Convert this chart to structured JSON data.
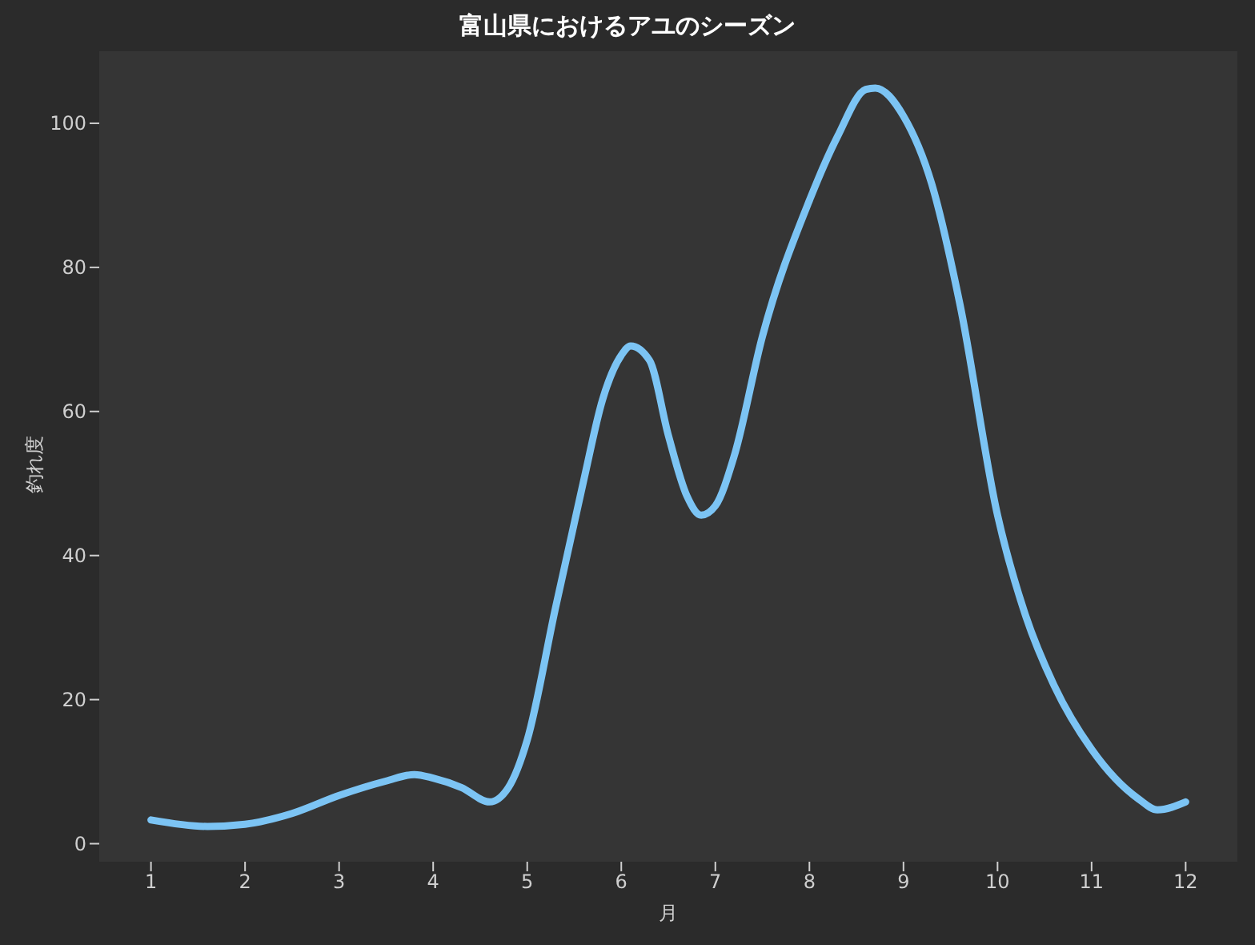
{
  "chart_data": {
    "type": "line",
    "title": "富山県におけるアユのシーズン",
    "xlabel": "月",
    "ylabel": "釣れ度",
    "x": [
      1,
      1.6,
      2,
      2.5,
      3,
      3.5,
      3.8,
      4,
      4.3,
      4.6,
      4.8,
      5,
      5.3,
      5.6,
      5.8,
      6,
      6.1,
      6.3,
      6.5,
      6.7,
      6.85,
      7,
      7.2,
      7.5,
      8,
      8.3,
      8.6,
      8.7,
      9,
      9.3,
      9.6,
      10,
      10.3,
      10.6,
      11,
      11.5,
      11.7,
      12
    ],
    "series": [
      {
        "color": "#7cc4f4",
        "values": [
          3.3,
          2.4,
          2.7,
          4.2,
          6.7,
          8.7,
          9.6,
          9.1,
          7.8,
          5.8,
          7.8,
          14.4,
          32.7,
          50.4,
          61.6,
          67.8,
          69.1,
          67.1,
          56.7,
          48.2,
          45.6,
          46.9,
          53.8,
          70.4,
          89.3,
          98.2,
          104.7,
          104.9,
          101,
          91.6,
          74.9,
          45.6,
          31.6,
          22,
          13.1,
          6.2,
          4.7,
          5.8
        ]
      }
    ],
    "xlim": [
      0.45,
      12.55
    ],
    "ylim": [
      -2.5,
      110
    ],
    "xticks": [
      1,
      2,
      3,
      4,
      5,
      6,
      7,
      8,
      9,
      10,
      11,
      12
    ],
    "yticks": [
      0,
      20,
      40,
      60,
      80,
      100
    ],
    "grid": false,
    "legend": false,
    "marker": "none",
    "line_style": "solid"
  }
}
